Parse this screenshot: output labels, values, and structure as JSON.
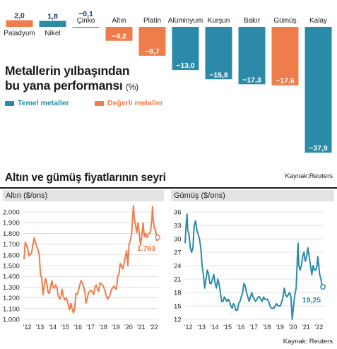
{
  "bar_section": {
    "title_line1": "Metallerin yılbaşından",
    "title_line2": "bu yana performansı",
    "title_unit": "(%)",
    "legend_base": "Temel metaller",
    "legend_precious": "Değerli metaller",
    "colors": {
      "base": "#2b8aa8",
      "precious": "#ef7d4b"
    }
  },
  "line_section": {
    "title": "Altın ve gümüş fiyatlarının seyri",
    "source_top": "Kaynak:Reuters",
    "source_bottom": "Kaynak: Reuters",
    "gold_panel_title": "Altın ($/ons)",
    "silver_panel_title": "Gümüş ($/ons)",
    "gold_last_label": "1.763",
    "silver_last_label": "19,25",
    "colors": {
      "gold": "#ef7d4b",
      "silver": "#2b8aa8"
    }
  },
  "chart_data": [
    {
      "type": "bar",
      "title": "Metallerin yılbaşından bu yana performansı (%)",
      "categories": [
        "Paladyum",
        "Nikel",
        "Çinko",
        "Altın",
        "Platin",
        "Alüminyum",
        "Kurşun",
        "Bakır",
        "Gümüş",
        "Kalay"
      ],
      "values": [
        2.0,
        1.8,
        -0.1,
        -4.2,
        -8.7,
        -13.0,
        -15.8,
        -17.3,
        -17.6,
        -37.9
      ],
      "value_labels": [
        "2,0",
        "1,8",
        "−0,1",
        "−4,2",
        "−8,7",
        "−13,0",
        "−15,8",
        "−17,3",
        "−17,6",
        "−37,9"
      ],
      "groups": [
        "precious",
        "base",
        "base",
        "precious",
        "precious",
        "base",
        "base",
        "base",
        "precious",
        "base"
      ],
      "legend": [
        "Temel metaller",
        "Değerli metaller"
      ]
    },
    {
      "type": "line",
      "title": "Altın ($/ons)",
      "xlabel": "",
      "ylabel": "",
      "x_ticks": [
        "'12",
        "'13",
        "'14",
        "'15",
        "'16",
        "'17",
        "'18",
        "'19",
        "'20",
        "'21",
        "'22"
      ],
      "y_ticks": [
        "1.000",
        "1.100",
        "1.200",
        "1.300",
        "1.400",
        "1.500",
        "1.600",
        "1.700",
        "1.800",
        "1.900",
        "2.000"
      ],
      "ylim": [
        1000,
        2000
      ],
      "xlim": [
        2012.0,
        2022.6
      ],
      "series": [
        {
          "values": [
            [
              2012.0,
              1560
            ],
            [
              2012.1,
              1720
            ],
            [
              2012.2,
              1690
            ],
            [
              2012.3,
              1650
            ],
            [
              2012.4,
              1590
            ],
            [
              2012.5,
              1610
            ],
            [
              2012.6,
              1620
            ],
            [
              2012.7,
              1690
            ],
            [
              2012.8,
              1760
            ],
            [
              2012.9,
              1720
            ],
            [
              2013.0,
              1680
            ],
            [
              2013.1,
              1650
            ],
            [
              2013.2,
              1600
            ],
            [
              2013.3,
              1420
            ],
            [
              2013.4,
              1380
            ],
            [
              2013.5,
              1230
            ],
            [
              2013.6,
              1320
            ],
            [
              2013.7,
              1380
            ],
            [
              2013.8,
              1330
            ],
            [
              2013.9,
              1250
            ],
            [
              2014.0,
              1240
            ],
            [
              2014.1,
              1300
            ],
            [
              2014.2,
              1360
            ],
            [
              2014.3,
              1300
            ],
            [
              2014.4,
              1290
            ],
            [
              2014.5,
              1320
            ],
            [
              2014.6,
              1300
            ],
            [
              2014.7,
              1220
            ],
            [
              2014.8,
              1190
            ],
            [
              2014.9,
              1200
            ],
            [
              2015.0,
              1280
            ],
            [
              2015.1,
              1220
            ],
            [
              2015.2,
              1180
            ],
            [
              2015.3,
              1200
            ],
            [
              2015.4,
              1180
            ],
            [
              2015.5,
              1130
            ],
            [
              2015.6,
              1090
            ],
            [
              2015.7,
              1150
            ],
            [
              2015.8,
              1100
            ],
            [
              2015.9,
              1060
            ],
            [
              2016.0,
              1100
            ],
            [
              2016.1,
              1240
            ],
            [
              2016.2,
              1230
            ],
            [
              2016.3,
              1270
            ],
            [
              2016.4,
              1320
            ],
            [
              2016.5,
              1360
            ],
            [
              2016.6,
              1340
            ],
            [
              2016.7,
              1310
            ],
            [
              2016.8,
              1260
            ],
            [
              2016.9,
              1150
            ],
            [
              2017.0,
              1200
            ],
            [
              2017.1,
              1250
            ],
            [
              2017.2,
              1260
            ],
            [
              2017.3,
              1270
            ],
            [
              2017.4,
              1250
            ],
            [
              2017.5,
              1230
            ],
            [
              2017.6,
              1300
            ],
            [
              2017.7,
              1320
            ],
            [
              2017.8,
              1280
            ],
            [
              2017.9,
              1260
            ],
            [
              2018.0,
              1340
            ],
            [
              2018.1,
              1330
            ],
            [
              2018.2,
              1320
            ],
            [
              2018.3,
              1300
            ],
            [
              2018.4,
              1260
            ],
            [
              2018.5,
              1220
            ],
            [
              2018.6,
              1190
            ],
            [
              2018.7,
              1210
            ],
            [
              2018.8,
              1230
            ],
            [
              2018.9,
              1280
            ],
            [
              2019.0,
              1290
            ],
            [
              2019.1,
              1310
            ],
            [
              2019.2,
              1290
            ],
            [
              2019.3,
              1280
            ],
            [
              2019.4,
              1400
            ],
            [
              2019.5,
              1420
            ],
            [
              2019.6,
              1520
            ],
            [
              2019.7,
              1500
            ],
            [
              2019.8,
              1470
            ],
            [
              2019.9,
              1520
            ],
            [
              2020.0,
              1580
            ],
            [
              2020.1,
              1640
            ],
            [
              2020.2,
              1500
            ],
            [
              2020.3,
              1700
            ],
            [
              2020.4,
              1730
            ],
            [
              2020.5,
              1800
            ],
            [
              2020.6,
              2000
            ],
            [
              2020.65,
              2060
            ],
            [
              2020.7,
              1950
            ],
            [
              2020.8,
              1880
            ],
            [
              2020.9,
              1810
            ],
            [
              2021.0,
              1900
            ],
            [
              2021.1,
              1800
            ],
            [
              2021.2,
              1690
            ],
            [
              2021.3,
              1780
            ],
            [
              2021.4,
              1900
            ],
            [
              2021.5,
              1770
            ],
            [
              2021.6,
              1800
            ],
            [
              2021.7,
              1760
            ],
            [
              2021.8,
              1790
            ],
            [
              2021.9,
              1800
            ],
            [
              2022.0,
              1820
            ],
            [
              2022.1,
              1940
            ],
            [
              2022.15,
              2050
            ],
            [
              2022.2,
              1930
            ],
            [
              2022.3,
              1850
            ],
            [
              2022.4,
              1830
            ],
            [
              2022.5,
              1730
            ],
            [
              2022.55,
              1763
            ]
          ]
        }
      ]
    },
    {
      "type": "line",
      "title": "Gümüş ($/ons)",
      "xlabel": "",
      "ylabel": "",
      "x_ticks": [
        "'12",
        "'13",
        "'14",
        "'15",
        "'16",
        "'17",
        "'18",
        "'19",
        "'20",
        "'21",
        "'22"
      ],
      "y_ticks": [
        "12",
        "15",
        "18",
        "21",
        "24",
        "27",
        "30",
        "33",
        "36"
      ],
      "ylim": [
        12,
        36
      ],
      "xlim": [
        2012.0,
        2022.6
      ],
      "series": [
        {
          "values": [
            [
              2012.0,
              29
            ],
            [
              2012.1,
              34
            ],
            [
              2012.15,
              35.5
            ],
            [
              2012.2,
              32
            ],
            [
              2012.3,
              31
            ],
            [
              2012.4,
              28
            ],
            [
              2012.5,
              27
            ],
            [
              2012.6,
              28
            ],
            [
              2012.7,
              33
            ],
            [
              2012.8,
              34
            ],
            [
              2012.9,
              32
            ],
            [
              2013.0,
              31
            ],
            [
              2013.1,
              30
            ],
            [
              2013.2,
              28
            ],
            [
              2013.3,
              24
            ],
            [
              2013.4,
              22
            ],
            [
              2013.5,
              19
            ],
            [
              2013.6,
              21
            ],
            [
              2013.7,
              23
            ],
            [
              2013.8,
              22
            ],
            [
              2013.9,
              20
            ],
            [
              2014.0,
              20
            ],
            [
              2014.1,
              21
            ],
            [
              2014.2,
              22
            ],
            [
              2014.3,
              20
            ],
            [
              2014.4,
              19
            ],
            [
              2014.5,
              21
            ],
            [
              2014.6,
              20
            ],
            [
              2014.7,
              18
            ],
            [
              2014.8,
              16
            ],
            [
              2014.9,
              16
            ],
            [
              2015.0,
              17
            ],
            [
              2015.1,
              16.5
            ],
            [
              2015.2,
              16
            ],
            [
              2015.3,
              16.5
            ],
            [
              2015.4,
              16
            ],
            [
              2015.5,
              15
            ],
            [
              2015.6,
              14.5
            ],
            [
              2015.7,
              15.5
            ],
            [
              2015.8,
              15
            ],
            [
              2015.9,
              14
            ],
            [
              2016.0,
              14
            ],
            [
              2016.1,
              15.5
            ],
            [
              2016.2,
              16
            ],
            [
              2016.3,
              17
            ],
            [
              2016.4,
              18
            ],
            [
              2016.5,
              20
            ],
            [
              2016.6,
              19.5
            ],
            [
              2016.7,
              18
            ],
            [
              2016.8,
              17
            ],
            [
              2016.9,
              16
            ],
            [
              2017.0,
              17
            ],
            [
              2017.1,
              18
            ],
            [
              2017.2,
              17
            ],
            [
              2017.3,
              16.5
            ],
            [
              2017.4,
              16
            ],
            [
              2017.5,
              16.5
            ],
            [
              2017.6,
              17
            ],
            [
              2017.7,
              17
            ],
            [
              2017.8,
              16.5
            ],
            [
              2017.9,
              16
            ],
            [
              2018.0,
              17
            ],
            [
              2018.1,
              16.5
            ],
            [
              2018.2,
              16.5
            ],
            [
              2018.3,
              16.5
            ],
            [
              2018.4,
              16
            ],
            [
              2018.5,
              15
            ],
            [
              2018.6,
              14.5
            ],
            [
              2018.7,
              14.5
            ],
            [
              2018.8,
              14.5
            ],
            [
              2018.9,
              15
            ],
            [
              2019.0,
              15.5
            ],
            [
              2019.1,
              15
            ],
            [
              2019.2,
              15
            ],
            [
              2019.3,
              15
            ],
            [
              2019.4,
              16
            ],
            [
              2019.5,
              17
            ],
            [
              2019.6,
              19
            ],
            [
              2019.7,
              17.5
            ],
            [
              2019.8,
              17
            ],
            [
              2019.9,
              17.5
            ],
            [
              2020.0,
              18
            ],
            [
              2020.1,
              17
            ],
            [
              2020.2,
              12
            ],
            [
              2020.3,
              15
            ],
            [
              2020.4,
              17.5
            ],
            [
              2020.5,
              19
            ],
            [
              2020.6,
              26
            ],
            [
              2020.65,
              29
            ],
            [
              2020.7,
              24
            ],
            [
              2020.8,
              23
            ],
            [
              2020.9,
              24
            ],
            [
              2021.0,
              26
            ],
            [
              2021.1,
              27
            ],
            [
              2021.2,
              25
            ],
            [
              2021.3,
              26
            ],
            [
              2021.4,
              28
            ],
            [
              2021.5,
              26
            ],
            [
              2021.6,
              24
            ],
            [
              2021.7,
              22
            ],
            [
              2021.8,
              24
            ],
            [
              2021.9,
              23
            ],
            [
              2022.0,
              23
            ],
            [
              2022.1,
              24
            ],
            [
              2022.15,
              26
            ],
            [
              2022.2,
              25
            ],
            [
              2022.3,
              22
            ],
            [
              2022.4,
              21
            ],
            [
              2022.5,
              19
            ],
            [
              2022.55,
              19.25
            ]
          ]
        }
      ]
    }
  ]
}
